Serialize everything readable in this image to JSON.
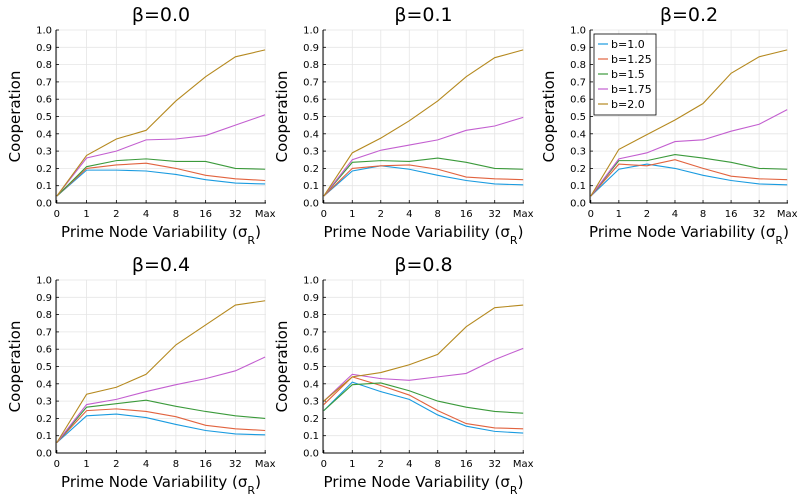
{
  "colors": {
    "b=1.0": "#1a9be0",
    "b=1.25": "#e1633f",
    "b=1.5": "#3b9a3b",
    "b=1.75": "#c35fd0",
    "b=2.0": "#b5891f"
  },
  "chart_data": [
    {
      "type": "line",
      "title": "β=0.0",
      "xlabel": "Prime Node Variability (σR)",
      "ylabel": "Cooperation",
      "categories": [
        "0",
        "1",
        "2",
        "4",
        "8",
        "16",
        "32",
        "Max"
      ],
      "ylim": [
        0,
        1.0
      ],
      "yticks": [
        "0.0",
        "0.1",
        "0.2",
        "0.3",
        "0.4",
        "0.5",
        "0.6",
        "0.7",
        "0.8",
        "0.9",
        "1.0"
      ],
      "grid": true,
      "legend": null,
      "series": [
        {
          "name": "b=1.0",
          "values": [
            0.04,
            0.19,
            0.19,
            0.185,
            0.165,
            0.135,
            0.115,
            0.11
          ]
        },
        {
          "name": "b=1.25",
          "values": [
            0.04,
            0.2,
            0.22,
            0.23,
            0.2,
            0.16,
            0.14,
            0.13
          ]
        },
        {
          "name": "b=1.5",
          "values": [
            0.04,
            0.21,
            0.245,
            0.255,
            0.24,
            0.24,
            0.2,
            0.195
          ]
        },
        {
          "name": "b=1.75",
          "values": [
            0.04,
            0.26,
            0.3,
            0.365,
            0.37,
            0.39,
            0.45,
            0.51
          ]
        },
        {
          "name": "b=2.0",
          "values": [
            0.04,
            0.275,
            0.37,
            0.42,
            0.59,
            0.73,
            0.845,
            0.885
          ]
        }
      ]
    },
    {
      "type": "line",
      "title": "β=0.1",
      "xlabel": "Prime Node Variability (σR)",
      "ylabel": "Cooperation",
      "categories": [
        "0",
        "1",
        "2",
        "4",
        "8",
        "16",
        "32",
        "Max"
      ],
      "ylim": [
        0,
        1.0
      ],
      "yticks": [
        "0.0",
        "0.1",
        "0.2",
        "0.3",
        "0.4",
        "0.5",
        "0.6",
        "0.7",
        "0.8",
        "0.9",
        "1.0"
      ],
      "grid": true,
      "legend": null,
      "series": [
        {
          "name": "b=1.0",
          "values": [
            0.04,
            0.185,
            0.215,
            0.195,
            0.16,
            0.13,
            0.11,
            0.105
          ]
        },
        {
          "name": "b=1.25",
          "values": [
            0.04,
            0.2,
            0.215,
            0.22,
            0.195,
            0.15,
            0.14,
            0.135
          ]
        },
        {
          "name": "b=1.5",
          "values": [
            0.04,
            0.235,
            0.245,
            0.24,
            0.26,
            0.235,
            0.2,
            0.195
          ]
        },
        {
          "name": "b=1.75",
          "values": [
            0.04,
            0.25,
            0.305,
            0.335,
            0.365,
            0.42,
            0.445,
            0.495
          ]
        },
        {
          "name": "b=2.0",
          "values": [
            0.04,
            0.29,
            0.375,
            0.475,
            0.59,
            0.73,
            0.84,
            0.885
          ]
        }
      ]
    },
    {
      "type": "line",
      "title": "β=0.2",
      "xlabel": "Prime Node Variability (σR)",
      "ylabel": "Cooperation",
      "categories": [
        "0",
        "1",
        "2",
        "4",
        "8",
        "16",
        "32",
        "Max"
      ],
      "ylim": [
        0,
        1.0
      ],
      "yticks": [
        "0.0",
        "0.1",
        "0.2",
        "0.3",
        "0.4",
        "0.5",
        "0.6",
        "0.7",
        "0.8",
        "0.9",
        "1.0"
      ],
      "grid": true,
      "legend": "top-left",
      "series": [
        {
          "name": "b=1.0",
          "values": [
            0.04,
            0.195,
            0.225,
            0.2,
            0.16,
            0.13,
            0.11,
            0.105
          ]
        },
        {
          "name": "b=1.25",
          "values": [
            0.04,
            0.225,
            0.215,
            0.25,
            0.2,
            0.155,
            0.14,
            0.135
          ]
        },
        {
          "name": "b=1.5",
          "values": [
            0.04,
            0.245,
            0.245,
            0.28,
            0.26,
            0.235,
            0.2,
            0.195
          ]
        },
        {
          "name": "b=1.75",
          "values": [
            0.04,
            0.255,
            0.29,
            0.355,
            0.365,
            0.415,
            0.455,
            0.54
          ]
        },
        {
          "name": "b=2.0",
          "values": [
            0.04,
            0.31,
            0.395,
            0.48,
            0.575,
            0.75,
            0.845,
            0.885
          ]
        }
      ]
    },
    {
      "type": "line",
      "title": "β=0.4",
      "xlabel": "Prime Node Variability (σR)",
      "ylabel": "Cooperation",
      "categories": [
        "0",
        "1",
        "2",
        "4",
        "8",
        "16",
        "32",
        "Max"
      ],
      "ylim": [
        0,
        1.0
      ],
      "yticks": [
        "0.0",
        "0.1",
        "0.2",
        "0.3",
        "0.4",
        "0.5",
        "0.6",
        "0.7",
        "0.8",
        "0.9",
        "1.0"
      ],
      "grid": true,
      "legend": null,
      "series": [
        {
          "name": "b=1.0",
          "values": [
            0.06,
            0.215,
            0.225,
            0.205,
            0.165,
            0.13,
            0.11,
            0.105
          ]
        },
        {
          "name": "b=1.25",
          "values": [
            0.06,
            0.245,
            0.255,
            0.24,
            0.21,
            0.16,
            0.14,
            0.13
          ]
        },
        {
          "name": "b=1.5",
          "values": [
            0.06,
            0.265,
            0.285,
            0.305,
            0.27,
            0.24,
            0.215,
            0.2
          ]
        },
        {
          "name": "b=1.75",
          "values": [
            0.06,
            0.28,
            0.31,
            0.355,
            0.395,
            0.43,
            0.475,
            0.555
          ]
        },
        {
          "name": "b=2.0",
          "values": [
            0.06,
            0.34,
            0.38,
            0.455,
            0.625,
            0.74,
            0.855,
            0.88
          ]
        }
      ]
    },
    {
      "type": "line",
      "title": "β=0.8",
      "xlabel": "Prime Node Variability (σR)",
      "ylabel": "Cooperation",
      "categories": [
        "0",
        "1",
        "2",
        "4",
        "8",
        "16",
        "32",
        "Max"
      ],
      "ylim": [
        0,
        1.0
      ],
      "yticks": [
        "0.0",
        "0.1",
        "0.2",
        "0.3",
        "0.4",
        "0.5",
        "0.6",
        "0.7",
        "0.8",
        "0.9",
        "1.0"
      ],
      "grid": true,
      "legend": null,
      "series": [
        {
          "name": "b=1.0",
          "values": [
            0.245,
            0.41,
            0.355,
            0.31,
            0.22,
            0.155,
            0.125,
            0.115
          ]
        },
        {
          "name": "b=1.25",
          "values": [
            0.28,
            0.44,
            0.39,
            0.335,
            0.245,
            0.17,
            0.145,
            0.14
          ]
        },
        {
          "name": "b=1.5",
          "values": [
            0.245,
            0.395,
            0.405,
            0.36,
            0.3,
            0.265,
            0.24,
            0.23
          ]
        },
        {
          "name": "b=1.75",
          "values": [
            0.3,
            0.455,
            0.43,
            0.42,
            0.44,
            0.46,
            0.54,
            0.605
          ]
        },
        {
          "name": "b=2.0",
          "values": [
            0.3,
            0.44,
            0.465,
            0.51,
            0.57,
            0.73,
            0.84,
            0.855
          ]
        }
      ]
    }
  ]
}
